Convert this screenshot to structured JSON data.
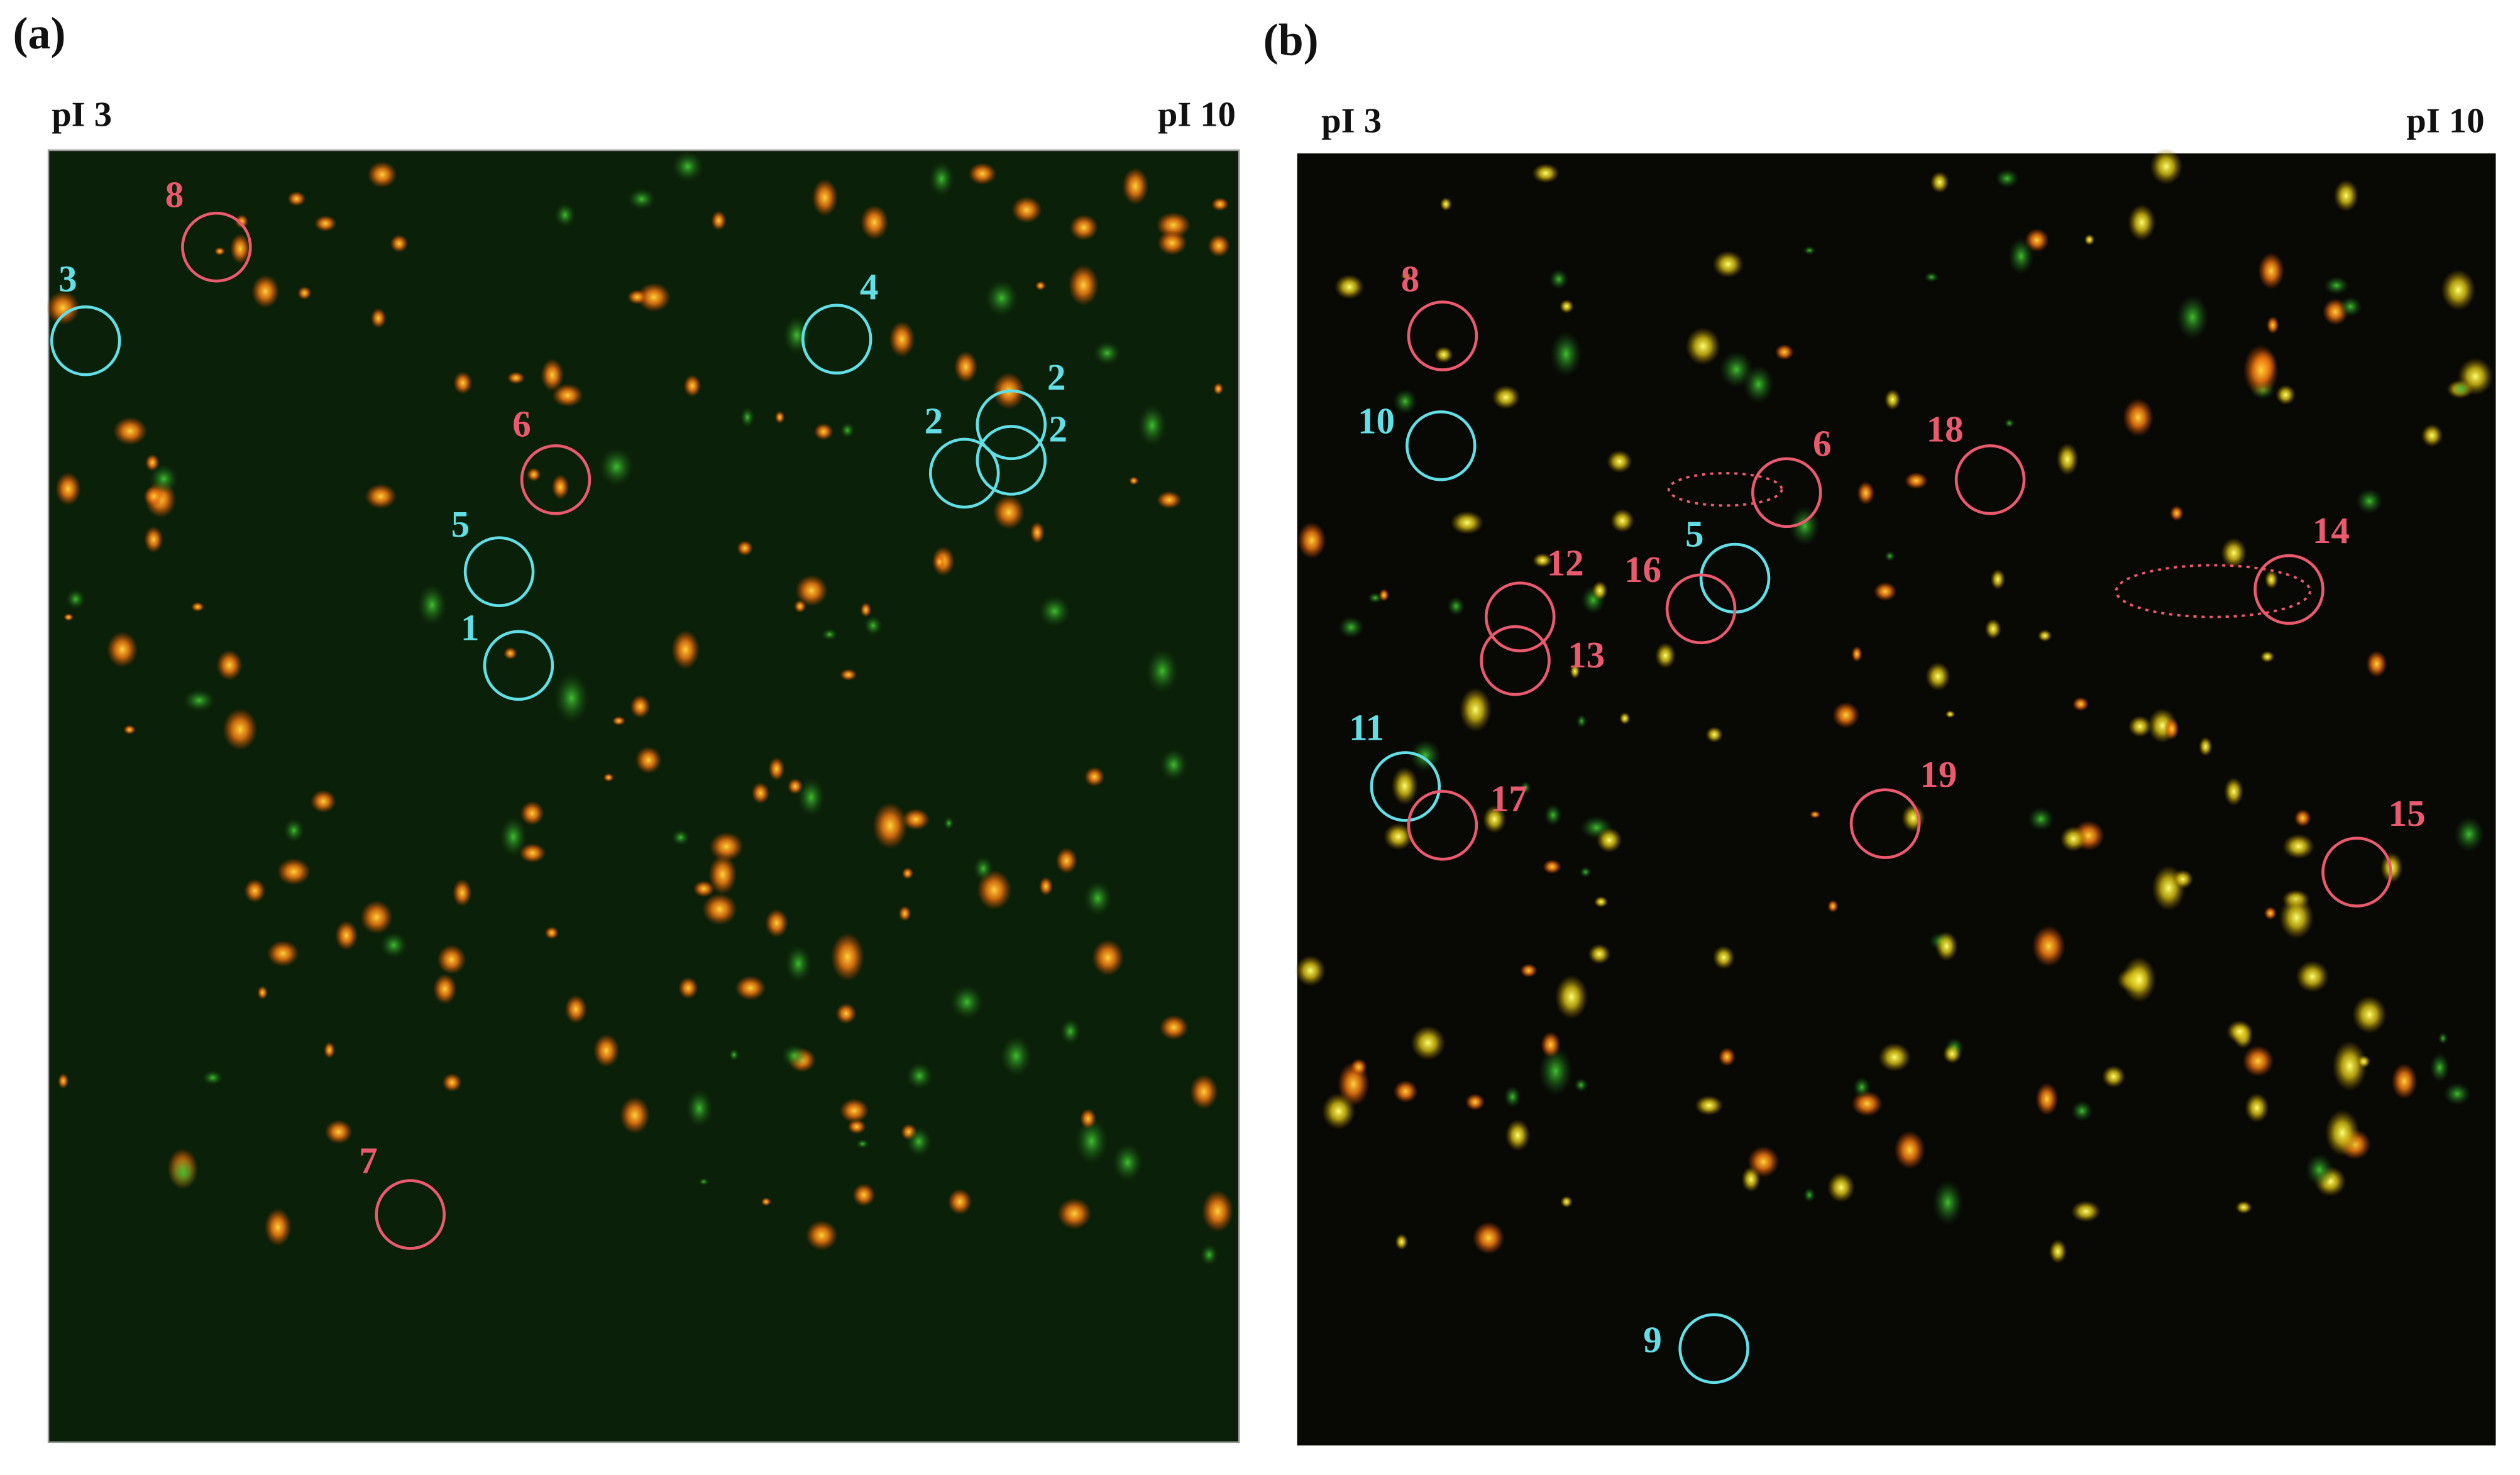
{
  "panels": [
    {
      "label": "(a)",
      "left_label": "pI 3",
      "right_label": "pI 10",
      "spots": [
        "8",
        "3",
        "4",
        "2",
        "2",
        "2",
        "6",
        "5",
        "1",
        "7"
      ]
    },
    {
      "label": "(b)",
      "left_label": "pI 3",
      "right_label": "pI 10",
      "spots": [
        "8",
        "10",
        "6",
        "18",
        "5",
        "16",
        "12",
        "13",
        "14",
        "11",
        "17",
        "19",
        "15",
        "9"
      ]
    }
  ]
}
